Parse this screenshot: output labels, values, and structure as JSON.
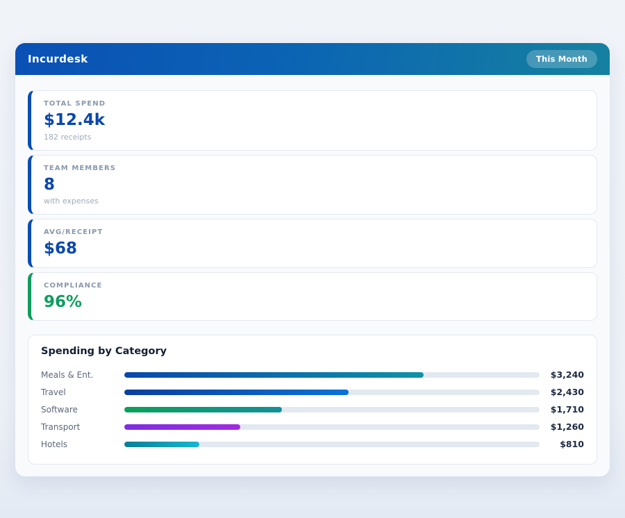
{
  "colors": {
    "page_background": "#eef1f7",
    "panel_background": "#f8fafc",
    "header_gradient_from": "#0a50b5",
    "header_gradient_to": "#1581a0",
    "accent_blue": "#0a4db4",
    "accent_green": "#0d9e5e",
    "stat_value_blue": "#0a47ad",
    "stat_value_green": "#0d9e5e",
    "bar_track": "#e3e9f1"
  },
  "header": {
    "title": "Incurdesk",
    "badge_label": "This Month"
  },
  "stats": [
    {
      "label": "TOTAL SPEND",
      "value": "$12.4k",
      "sub": "182 receipts",
      "accent_color": "#0a4db4",
      "value_color": "#0a47ad"
    },
    {
      "label": "TEAM MEMBERS",
      "value": "8",
      "sub": "with expenses",
      "accent_color": "#0a4db4",
      "value_color": "#0a47ad"
    },
    {
      "label": "AVG/RECEIPT",
      "value": "$68",
      "accent_color": "#0a4db4",
      "value_color": "#0a47ad"
    },
    {
      "label": "COMPLIANCE",
      "value": "96%",
      "accent_color": "#0d9e5e",
      "value_color": "#0d9e5e"
    }
  ],
  "chart": {
    "title": "Spending by Category"
  },
  "chart_data": {
    "type": "bar",
    "orientation": "horizontal",
    "title": "Spending by Category",
    "categories": [
      "Meals & Ent.",
      "Travel",
      "Software",
      "Transport",
      "Hotels"
    ],
    "values": [
      3240,
      2430,
      1710,
      1260,
      810
    ],
    "value_labels": [
      "$3,240",
      "$2,430",
      "$1,710",
      "$1,260",
      "$810"
    ],
    "axis_max": 4500,
    "grid": false,
    "legend": false,
    "track_color": "#e3e9f1",
    "bar_gradients": [
      {
        "from": "#0a47ad",
        "to": "#0d93a8"
      },
      {
        "from": "#0a3f9e",
        "to": "#0b72d8"
      },
      {
        "from": "#0aa159",
        "to": "#12909a"
      },
      {
        "from": "#7c2fe0",
        "to": "#a32ae0"
      },
      {
        "from": "#0b7d96",
        "to": "#14b8d4"
      }
    ]
  }
}
